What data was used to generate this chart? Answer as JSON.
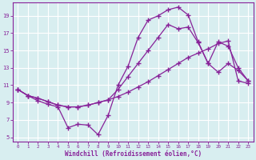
{
  "background_color": "#d8eef0",
  "grid_color": "#ffffff",
  "line_color": "#882299",
  "marker_color": "#882299",
  "xlabel": "Windchill (Refroidissement éolien,°C)",
  "ylabel_ticks": [
    5,
    7,
    9,
    11,
    13,
    15,
    17,
    19
  ],
  "xticks": [
    0,
    1,
    2,
    3,
    4,
    5,
    6,
    7,
    8,
    9,
    10,
    11,
    12,
    13,
    14,
    15,
    16,
    17,
    18,
    19,
    20,
    21,
    22,
    23
  ],
  "xlim": [
    -0.5,
    23.5
  ],
  "ylim": [
    4.5,
    20.5
  ],
  "series": [
    {
      "x": [
        0,
        1,
        2,
        3,
        4,
        5,
        6,
        7,
        8,
        9,
        10,
        11,
        12,
        13,
        14,
        15,
        16,
        17,
        18,
        19,
        20,
        21,
        22,
        23
      ],
      "y": [
        10.5,
        9.8,
        9.2,
        8.8,
        8.5,
        6.1,
        6.5,
        6.4,
        5.3,
        7.5,
        11.0,
        13.2,
        16.5,
        18.5,
        19.0,
        19.7,
        20.0,
        19.1,
        16.0,
        13.5,
        12.5,
        13.5,
        12.7,
        11.5
      ]
    },
    {
      "x": [
        0,
        1,
        2,
        3,
        4,
        5,
        6,
        7,
        8,
        9,
        10,
        11,
        12,
        13,
        14,
        15,
        16,
        17,
        18,
        19,
        20,
        21,
        22,
        23
      ],
      "y": [
        10.5,
        9.8,
        9.5,
        9.1,
        8.7,
        8.5,
        8.5,
        8.7,
        9.0,
        9.3,
        9.7,
        10.2,
        10.8,
        11.4,
        12.1,
        12.8,
        13.5,
        14.2,
        14.7,
        15.2,
        15.8,
        16.1,
        11.5,
        11.2
      ]
    },
    {
      "x": [
        0,
        1,
        2,
        3,
        4,
        5,
        6,
        7,
        8,
        9,
        10,
        11,
        12,
        13,
        14,
        15,
        16,
        17,
        18,
        19,
        20,
        21,
        22,
        23
      ],
      "y": [
        10.5,
        9.8,
        9.5,
        9.1,
        8.7,
        8.5,
        8.5,
        8.7,
        9.0,
        9.3,
        10.5,
        12.0,
        13.5,
        15.0,
        16.5,
        18.0,
        17.5,
        17.7,
        15.9,
        13.5,
        16.0,
        15.5,
        13.0,
        11.5
      ]
    }
  ]
}
